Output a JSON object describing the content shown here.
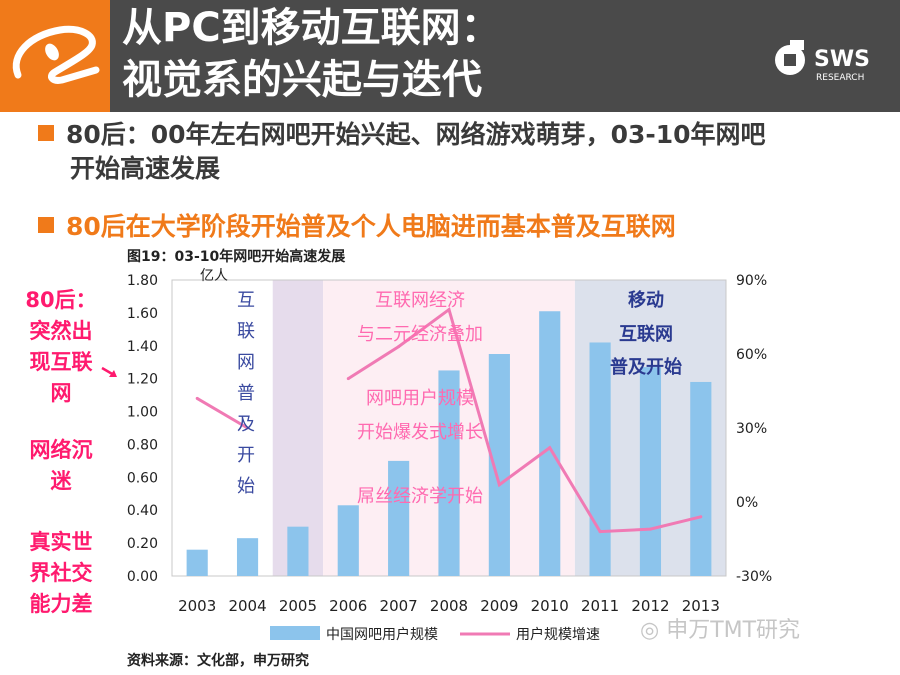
{
  "header": {
    "title_line1": "从PC到移动互联网：",
    "title_line2": "视觉系的兴起与迭代",
    "brand_name": "SWS",
    "brand_sub": "RESEARCH"
  },
  "bullets": {
    "b1_line1": "80后：00年左右网吧开始兴起、网络游戏萌芽，03-10年网吧",
    "b1_line2": "开始高速发展",
    "b2": "80后在大学阶段开始普及个人电脑进而基本普及互联网"
  },
  "figure": {
    "title": "图19：03-10年网吧开始高速发展",
    "source": "资料来源：文化部，申万研究"
  },
  "side_notes": {
    "n1": [
      "80后：",
      "突然出",
      "现互联",
      "网"
    ],
    "n2": [
      "网络沉",
      "迷"
    ],
    "n3": [
      "真实世",
      "界社交",
      "能力差"
    ]
  },
  "watermark": "申万TMT研究",
  "chart_data": {
    "type": "bar+line",
    "categories": [
      "2003",
      "2004",
      "2005",
      "2006",
      "2007",
      "2008",
      "2009",
      "2010",
      "2011",
      "2012",
      "2013"
    ],
    "series": [
      {
        "name": "中国网吧用户规模",
        "type": "bar",
        "axis": "left",
        "unit": "亿人",
        "values": [
          0.16,
          0.23,
          0.3,
          0.43,
          0.7,
          1.25,
          1.35,
          1.61,
          1.42,
          1.27,
          1.18
        ]
      },
      {
        "name": "用户规模增速",
        "type": "line",
        "axis": "right",
        "unit": "%",
        "values": [
          42,
          30,
          null,
          50,
          63,
          78,
          7,
          22,
          -12,
          -11,
          -6
        ]
      }
    ],
    "yleft": {
      "unit_label": "亿人",
      "min": 0,
      "max": 1.8,
      "ticks": [
        "1.80",
        "1.60",
        "1.40",
        "1.20",
        "1.00",
        "0.80",
        "0.60",
        "0.40",
        "0.20",
        "0.00"
      ]
    },
    "yright": {
      "min": -30,
      "max": 90,
      "ticks": [
        "90%",
        "60%",
        "30%",
        "0%",
        "-30%"
      ]
    },
    "shaded_regions": [
      {
        "from": "2005",
        "to": "2005",
        "color": "#e6dcec"
      },
      {
        "from": "2006",
        "to": "2010",
        "color": "#fdeef3"
      },
      {
        "from": "2011",
        "to": "2013",
        "color": "#dce1ec"
      }
    ],
    "annotations": {
      "vertical_text": "互联网普及开始",
      "a1_line1": "互联网经济",
      "a1_line2": "与二元经济叠加",
      "a2_line1": "网吧用户规模",
      "a2_line2": "开始爆发式增长",
      "a3": "屌丝经济学开始",
      "a4_line1": "移动",
      "a4_line2": "互联网",
      "a4_line3": "普及开始"
    },
    "colors": {
      "bar": "#8cc4ec",
      "line": "#f07ab4"
    }
  }
}
